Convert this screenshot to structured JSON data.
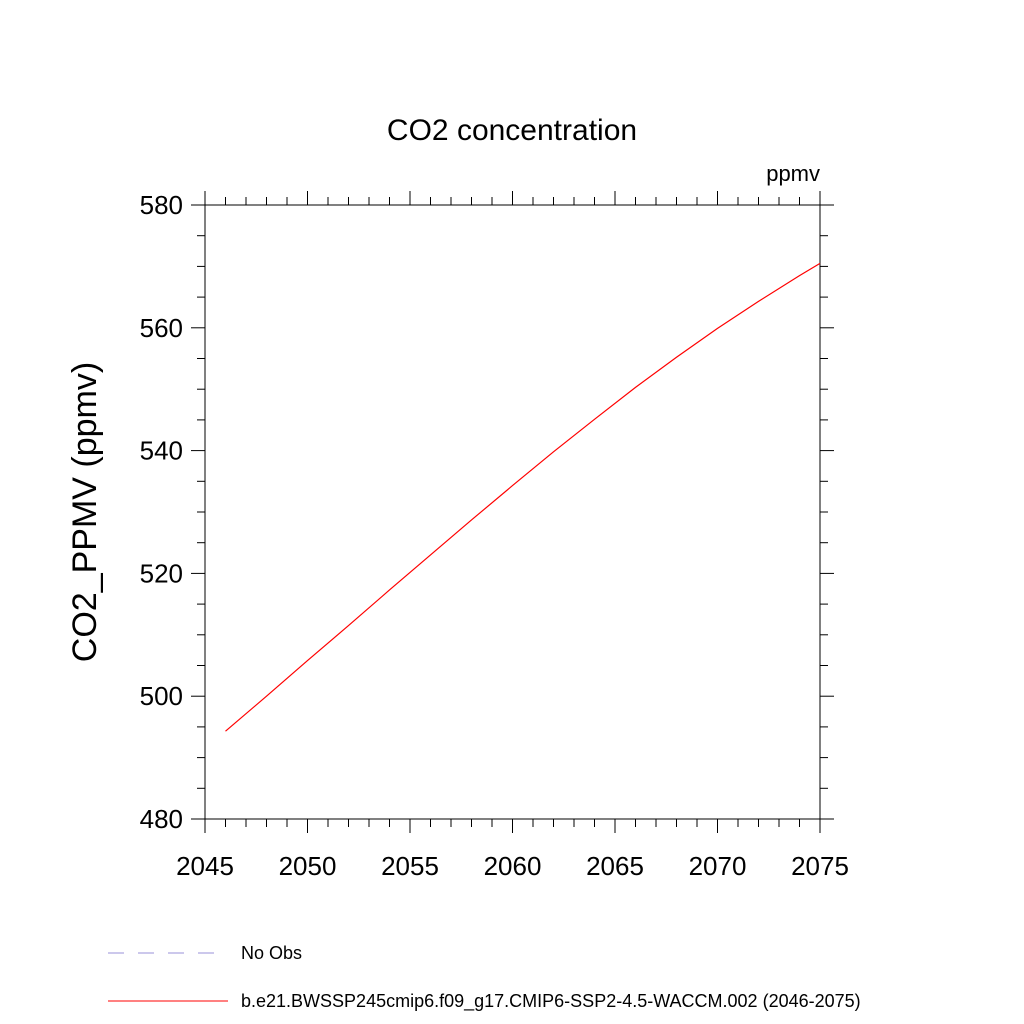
{
  "chart_data": {
    "type": "line",
    "title": "CO2 concentration",
    "units": "ppmv",
    "ylabel": "CO2_PPMV  (ppmv)",
    "xlabel": "",
    "xlim": [
      2045,
      2075
    ],
    "ylim": [
      480,
      580
    ],
    "x_major_ticks": [
      2045,
      2050,
      2055,
      2060,
      2065,
      2070,
      2075
    ],
    "x_minor_step": 1,
    "y_major_ticks": [
      480,
      500,
      520,
      540,
      560,
      580
    ],
    "y_minor_step": 5,
    "grid": false,
    "legend_position": "bottom",
    "series": [
      {
        "name": "No Obs",
        "color": "#9a91d9",
        "line_style": "dashed",
        "x": [],
        "y": []
      },
      {
        "name": "b.e21.BWSSP245cmip6.f09_g17.CMIP6-SSP2-4.5-WACCM.002 (2046-2075)",
        "color": "#ff0000",
        "line_style": "solid",
        "x": [
          2046,
          2048,
          2050,
          2052,
          2054,
          2056,
          2058,
          2060,
          2062,
          2064,
          2066,
          2068,
          2070,
          2072,
          2074,
          2075
        ],
        "y": [
          494.3,
          500.0,
          505.8,
          511.5,
          517.3,
          523.0,
          528.7,
          534.3,
          539.8,
          545.1,
          550.3,
          555.2,
          559.9,
          564.3,
          568.5,
          570.5
        ]
      }
    ]
  }
}
